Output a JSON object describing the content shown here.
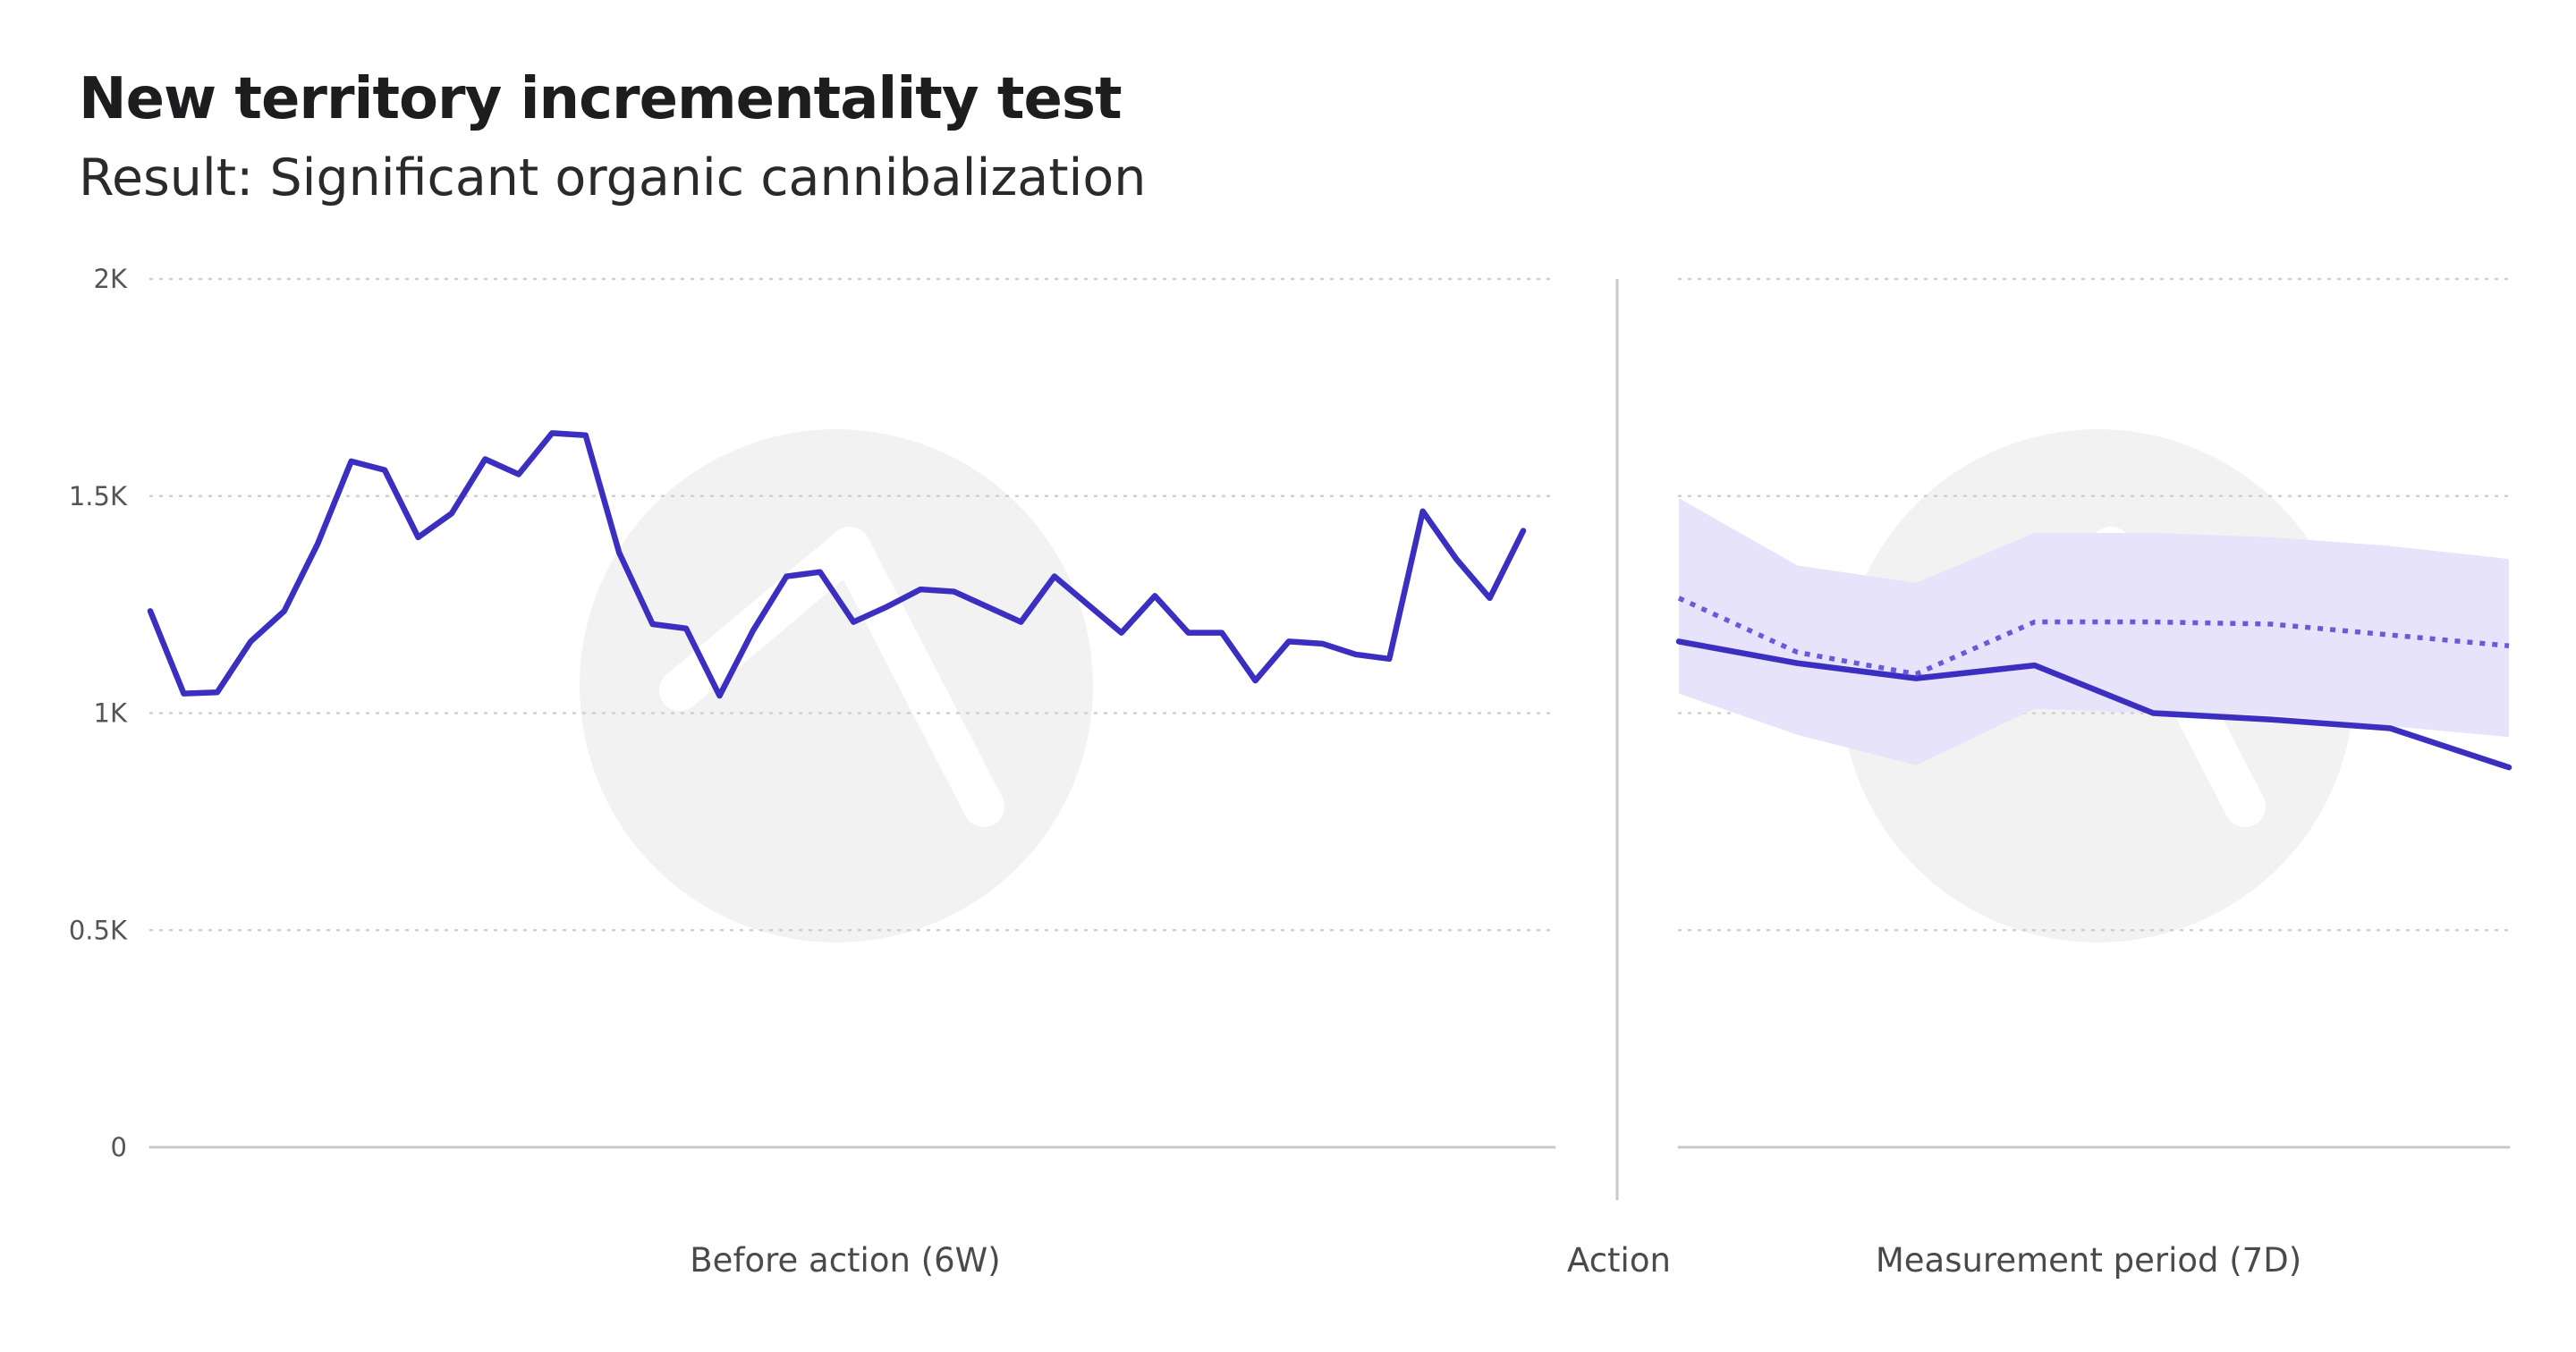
{
  "title": "New territory incrementality test",
  "subtitle": "Result: Significant organic cannibalization",
  "colors": {
    "line": "#3a2fc0",
    "band": "#e6e3fb",
    "dotted": "#6a5ad8",
    "grid": "#cfcfcf",
    "axis": "#c8c8c8",
    "watermark": "#f2f2f2"
  },
  "chart_data": {
    "type": "line",
    "title": "New territory incrementality test",
    "subtitle": "Result: Significant organic cannibalization",
    "ylim": [
      0,
      2000
    ],
    "yticks": [
      0,
      500,
      1000,
      1500,
      2000
    ],
    "ytick_labels": [
      "0",
      "0.5K",
      "1K",
      "1.5K",
      "2K"
    ],
    "grid": "horizontal dotted",
    "sections": [
      "Before action (6W)",
      "Action",
      "Measurement period (7D)"
    ],
    "before": {
      "label": "Before action (6W)",
      "values": [
        1235,
        1045,
        1048,
        1165,
        1235,
        1390,
        1580,
        1560,
        1405,
        1460,
        1585,
        1550,
        1645,
        1640,
        1370,
        1205,
        1195,
        1040,
        1190,
        1315,
        1325,
        1210,
        1245,
        1285,
        1280,
        1245,
        1210,
        1315,
        1250,
        1185,
        1270,
        1185,
        1185,
        1075,
        1165,
        1160,
        1135,
        1125,
        1465,
        1355,
        1265,
        1420
      ]
    },
    "action_label": "Action",
    "measurement": {
      "label": "Measurement period (7D)",
      "x": [
        1,
        2,
        3,
        4,
        5,
        6,
        7,
        8
      ],
      "series": [
        {
          "style": "solid",
          "values": [
            1165,
            1115,
            1080,
            1110,
            1000,
            985,
            965,
            875
          ]
        },
        {
          "style": "dotted",
          "values": [
            1265,
            1140,
            1090,
            1210,
            1210,
            1205,
            1180,
            1155
          ]
        }
      ],
      "band": {
        "upper": [
          1495,
          1340,
          1300,
          1415,
          1415,
          1405,
          1385,
          1355
        ],
        "lower": [
          1045,
          950,
          880,
          1010,
          1000,
          995,
          970,
          945
        ]
      }
    }
  }
}
